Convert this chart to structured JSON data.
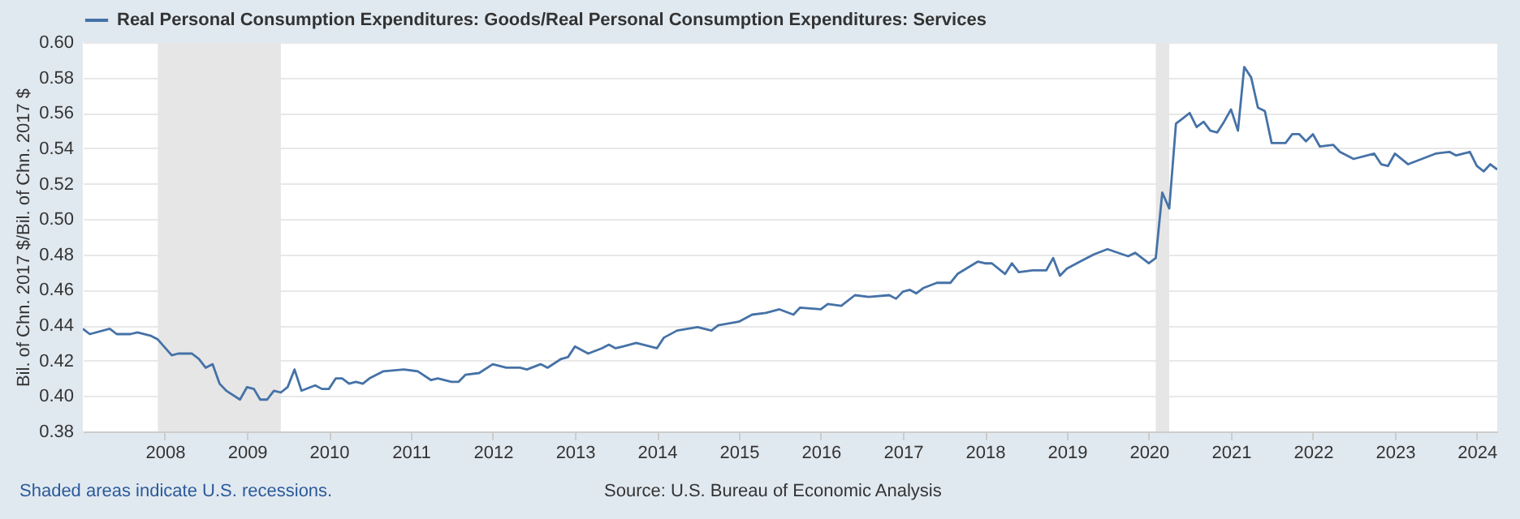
{
  "chart_data": {
    "type": "line",
    "ylabel": "Bil. of Chn. 2017 $/Bil. of Chn. 2017 $",
    "annotations": [
      "Shaded areas indicate U.S. recessions.",
      "Source: U.S. Bureau of Economic Analysis"
    ],
    "legend": "top left",
    "grid": "y",
    "line_style": "solid",
    "xlim": [
      "2007-01",
      "2024-04"
    ],
    "xticks": [
      {
        "value": "2008",
        "label": "2008"
      },
      {
        "value": "2009",
        "label": "2009"
      },
      {
        "value": "2010",
        "label": "2010"
      },
      {
        "value": "2011",
        "label": "2011"
      },
      {
        "value": "2012",
        "label": "2012"
      },
      {
        "value": "2013",
        "label": "2013"
      },
      {
        "value": "2014",
        "label": "2014"
      },
      {
        "value": "2015",
        "label": "2015"
      },
      {
        "value": "2016",
        "label": "2016"
      },
      {
        "value": "2017",
        "label": "2017"
      },
      {
        "value": "2018",
        "label": "2018"
      },
      {
        "value": "2019",
        "label": "2019"
      },
      {
        "value": "2020",
        "label": "2020"
      },
      {
        "value": "2021",
        "label": "2021"
      },
      {
        "value": "2022",
        "label": "2022"
      },
      {
        "value": "2023",
        "label": "2023"
      },
      {
        "value": "2024",
        "label": "2024"
      }
    ],
    "ylim": [
      0.38,
      0.6
    ],
    "yticks": [
      {
        "value": 0.38,
        "label": "0.38"
      },
      {
        "value": 0.4,
        "label": "0.40"
      },
      {
        "value": 0.42,
        "label": "0.42"
      },
      {
        "value": 0.44,
        "label": "0.44"
      },
      {
        "value": 0.46,
        "label": "0.46"
      },
      {
        "value": 0.48,
        "label": "0.48"
      },
      {
        "value": 0.5,
        "label": "0.50"
      },
      {
        "value": 0.52,
        "label": "0.52"
      },
      {
        "value": 0.54,
        "label": "0.54"
      },
      {
        "value": 0.56,
        "label": "0.56"
      },
      {
        "value": 0.58,
        "label": "0.58"
      },
      {
        "value": 0.6,
        "label": "0.60"
      }
    ],
    "bands": [
      {
        "axis": "x",
        "from": "2007-12",
        "to": "2009-06",
        "color": "#e6e6e6"
      },
      {
        "axis": "x",
        "from": "2020-02",
        "to": "2020-04",
        "color": "#e6e6e6"
      }
    ],
    "series": [
      {
        "name": "Real Personal Consumption Expenditures: Goods/Real Personal Consumption Expenditures: Services",
        "color": "#4572a7",
        "x": [
          "2007-01",
          "2007-02",
          "2007-05",
          "2007-06",
          "2007-08",
          "2007-09",
          "2007-11",
          "2007-12",
          "2008-02",
          "2008-03",
          "2008-05",
          "2008-06",
          "2008-07",
          "2008-08",
          "2008-09",
          "2008-10",
          "2008-12",
          "2009-01",
          "2009-02",
          "2009-03",
          "2009-04",
          "2009-05",
          "2009-06",
          "2009-07",
          "2009-08",
          "2009-09",
          "2009-11",
          "2009-12",
          "2010-01",
          "2010-02",
          "2010-03",
          "2010-04",
          "2010-05",
          "2010-06",
          "2010-07",
          "2010-09",
          "2010-12",
          "2011-02",
          "2011-04",
          "2011-05",
          "2011-07",
          "2011-08",
          "2011-09",
          "2011-11",
          "2012-01",
          "2012-03",
          "2012-05",
          "2012-06",
          "2012-08",
          "2012-09",
          "2012-11",
          "2012-12",
          "2013-01",
          "2013-03",
          "2013-05",
          "2013-06",
          "2013-07",
          "2013-08",
          "2013-10",
          "2014-01",
          "2014-02",
          "2014-04",
          "2014-07",
          "2014-09",
          "2014-10",
          "2015-01",
          "2015-03",
          "2015-05",
          "2015-07",
          "2015-09",
          "2015-10",
          "2016-01",
          "2016-02",
          "2016-04",
          "2016-06",
          "2016-08",
          "2016-11",
          "2016-12",
          "2017-01",
          "2017-02",
          "2017-03",
          "2017-04",
          "2017-06",
          "2017-08",
          "2017-09",
          "2017-12",
          "2018-01",
          "2018-02",
          "2018-04",
          "2018-05",
          "2018-06",
          "2018-08",
          "2018-10",
          "2018-11",
          "2018-12",
          "2019-01",
          "2019-03",
          "2019-05",
          "2019-07",
          "2019-10",
          "2019-11",
          "2020-01",
          "2020-02",
          "2020-03",
          "2020-04",
          "2020-05",
          "2020-06",
          "2020-07",
          "2020-08",
          "2020-09",
          "2020-10",
          "2020-11",
          "2020-12",
          "2021-01",
          "2021-02",
          "2021-03",
          "2021-04",
          "2021-05",
          "2021-06",
          "2021-07",
          "2021-09",
          "2021-10",
          "2021-11",
          "2021-12",
          "2022-01",
          "2022-02",
          "2022-04",
          "2022-05",
          "2022-07",
          "2022-10",
          "2022-11",
          "2022-12",
          "2023-01",
          "2023-03",
          "2023-05",
          "2023-07",
          "2023-09",
          "2023-10",
          "2023-12",
          "2024-01",
          "2024-02",
          "2024-03",
          "2024-04"
        ],
        "values": [
          0.438,
          0.435,
          0.438,
          0.435,
          0.435,
          0.436,
          0.434,
          0.432,
          0.423,
          0.424,
          0.424,
          0.421,
          0.416,
          0.418,
          0.407,
          0.403,
          0.398,
          0.405,
          0.404,
          0.398,
          0.398,
          0.403,
          0.402,
          0.405,
          0.415,
          0.403,
          0.406,
          0.404,
          0.404,
          0.41,
          0.41,
          0.407,
          0.408,
          0.407,
          0.41,
          0.414,
          0.415,
          0.414,
          0.409,
          0.41,
          0.408,
          0.408,
          0.412,
          0.413,
          0.418,
          0.416,
          0.416,
          0.415,
          0.418,
          0.416,
          0.421,
          0.422,
          0.428,
          0.424,
          0.427,
          0.429,
          0.427,
          0.428,
          0.43,
          0.427,
          0.433,
          0.437,
          0.439,
          0.437,
          0.44,
          0.442,
          0.446,
          0.447,
          0.449,
          0.446,
          0.45,
          0.449,
          0.452,
          0.451,
          0.457,
          0.456,
          0.457,
          0.455,
          0.459,
          0.46,
          0.458,
          0.461,
          0.464,
          0.464,
          0.469,
          0.476,
          0.475,
          0.475,
          0.469,
          0.475,
          0.47,
          0.471,
          0.471,
          0.478,
          0.468,
          0.472,
          0.476,
          0.48,
          0.483,
          0.479,
          0.481,
          0.475,
          0.478,
          0.515,
          0.506,
          0.554,
          0.557,
          0.56,
          0.552,
          0.555,
          0.55,
          0.549,
          0.555,
          0.562,
          0.55,
          0.586,
          0.58,
          0.563,
          0.561,
          0.543,
          0.543,
          0.548,
          0.548,
          0.544,
          0.548,
          0.541,
          0.542,
          0.538,
          0.534,
          0.537,
          0.531,
          0.53,
          0.537,
          0.531,
          0.534,
          0.537,
          0.538,
          0.536,
          0.538,
          0.53,
          0.527,
          0.531,
          0.528
        ]
      }
    ]
  }
}
